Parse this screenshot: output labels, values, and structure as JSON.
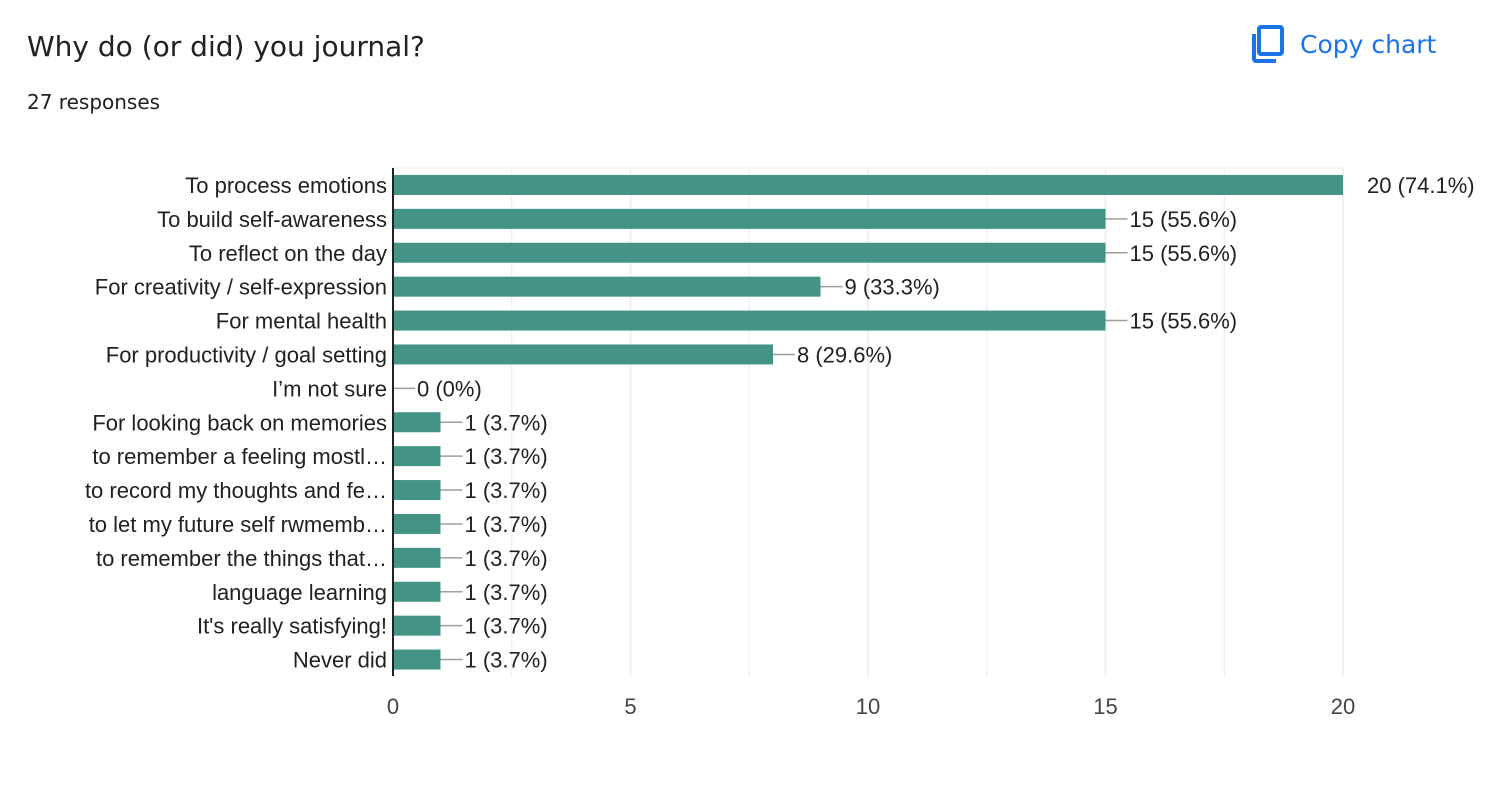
{
  "question": {
    "title": "Why do (or did) you journal?",
    "response_count": "27 responses"
  },
  "toolbar": {
    "copy_chart_label": "Copy chart",
    "copy_icon": "copy-icon"
  },
  "colors": {
    "bar": "#439486",
    "accent": "#1a73e8",
    "grid": "#ececec",
    "axis": "#202124",
    "leader": "#9e9e9e"
  },
  "chart_data": {
    "type": "bar",
    "orientation": "horizontal",
    "categories": [
      "To process emotions",
      "To build self-awareness",
      "To reflect on the day",
      "For creativity / self-expression",
      "For mental health",
      "For productivity / goal setting",
      "I’m not sure",
      "For looking back on memories",
      "to remember a feeling mostl…",
      "to record my thoughts and fe…",
      "to let my future self rwmemb…",
      "to remember the things that…",
      "language learning",
      "It's really satisfying!",
      "Never did"
    ],
    "values": [
      20,
      15,
      15,
      9,
      15,
      8,
      0,
      1,
      1,
      1,
      1,
      1,
      1,
      1,
      1
    ],
    "data_labels": [
      "20 (74.1%)",
      "15 (55.6%)",
      "15 (55.6%)",
      "9 (33.3%)",
      "15 (55.6%)",
      "8 (29.6%)",
      "0 (0%)",
      "1 (3.7%)",
      "1 (3.7%)",
      "1 (3.7%)",
      "1 (3.7%)",
      "1 (3.7%)",
      "1 (3.7%)",
      "1 (3.7%)",
      "1 (3.7%)"
    ],
    "xticks": [
      0,
      5,
      10,
      15,
      20
    ],
    "xlim": [
      0,
      20
    ],
    "grid": true,
    "title": "",
    "xlabel": "",
    "ylabel": ""
  }
}
